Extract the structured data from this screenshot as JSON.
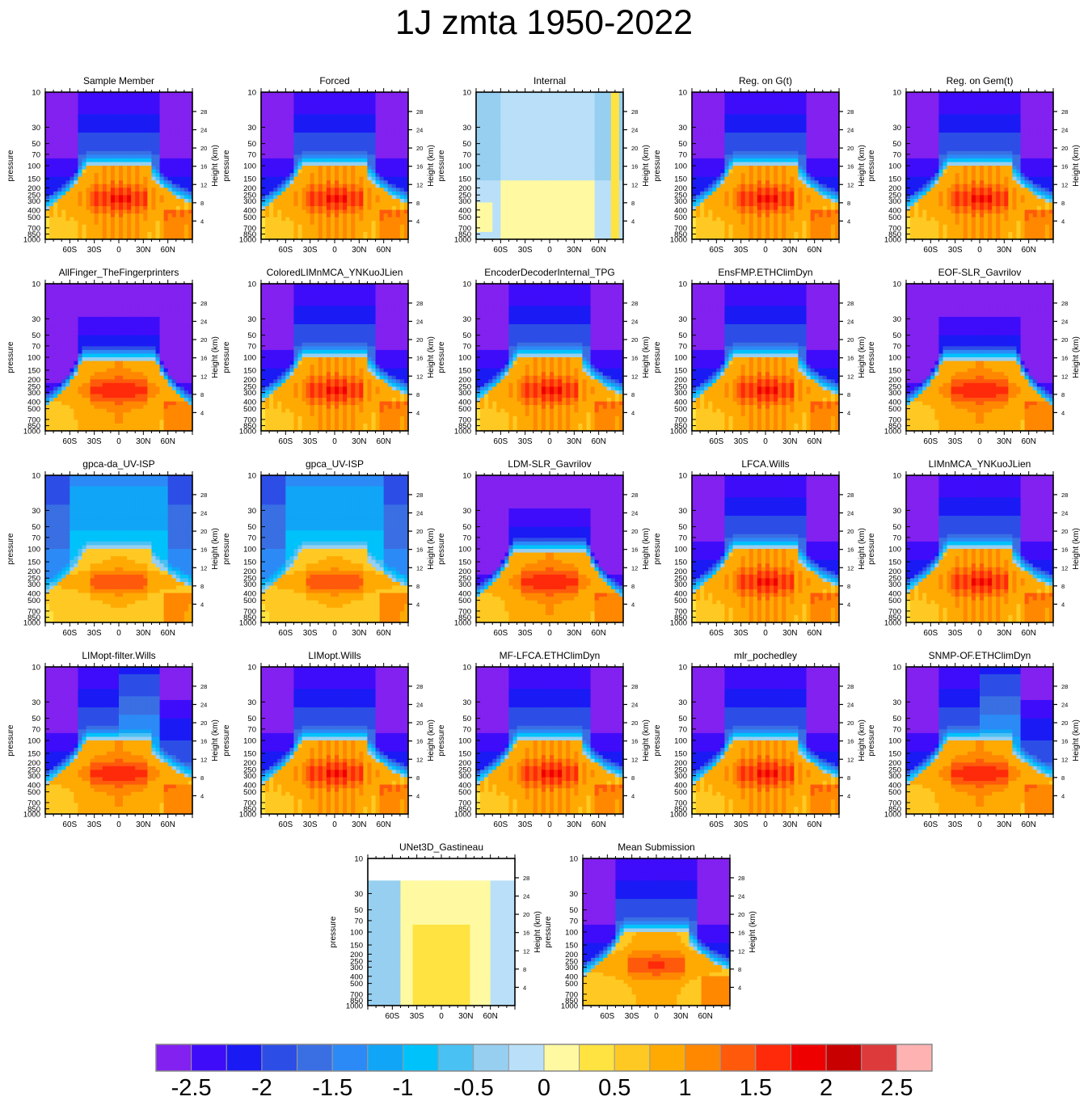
{
  "title": "1J zmta 1950-2022",
  "axis_labels": {
    "y_left": "pressure",
    "y_right": "Height (km)",
    "pressure_ticks": [
      "10",
      "30",
      "50",
      "70",
      "100",
      "150",
      "200",
      "250",
      "300",
      "400",
      "500",
      "700",
      "850",
      "1000"
    ],
    "height_ticks": [
      "28",
      "24",
      "20",
      "16",
      "12",
      "8",
      "4"
    ],
    "lat_ticks": [
      "60S",
      "30S",
      "0",
      "30N",
      "60N"
    ]
  },
  "colorbar": {
    "colors": [
      "#8221f0",
      "#3f0cfa",
      "#1a1af5",
      "#2c4ee6",
      "#396fe3",
      "#2c8af7",
      "#11a5f7",
      "#00c2fb",
      "#4ac1f3",
      "#97cff0",
      "#b9e0f8",
      "#fff9a2",
      "#ffe341",
      "#ffc923",
      "#ffaa03",
      "#ff8800",
      "#ff5a0c",
      "#ff2a0a",
      "#ee0000",
      "#c90000",
      "#dd3b3b",
      "#ffb2b2"
    ],
    "labels": [
      "-2.5",
      "-2",
      "-1.5",
      "-1",
      "-0.5",
      "0",
      "0.5",
      "1",
      "1.5",
      "2",
      "2.5"
    ]
  },
  "chart_data": [
    {
      "type": "heatmap",
      "title": "Sample Member",
      "style": "strong"
    },
    {
      "type": "heatmap",
      "title": "Forced",
      "style": "strong"
    },
    {
      "type": "heatmap",
      "title": "Internal",
      "style": "internal"
    },
    {
      "type": "heatmap",
      "title": "Reg. on G(t)",
      "style": "strong"
    },
    {
      "type": "heatmap",
      "title": "Reg. on Gem(t)",
      "style": "strong"
    },
    {
      "type": "heatmap",
      "title": "AllFinger_TheFingerprinters",
      "style": "smooth"
    },
    {
      "type": "heatmap",
      "title": "ColoredLIMnMCA_YNKuoJLien",
      "style": "strong"
    },
    {
      "type": "heatmap",
      "title": "EncoderDecoderInternal_TPG",
      "style": "strong"
    },
    {
      "type": "heatmap",
      "title": "EnsFMP.ETHClimDyn",
      "style": "strong"
    },
    {
      "type": "heatmap",
      "title": "EOF-SLR_Gavrilov",
      "style": "smooth"
    },
    {
      "type": "heatmap",
      "title": "gpca-da_UV-ISP",
      "style": "weak"
    },
    {
      "type": "heatmap",
      "title": "gpca_UV-ISP",
      "style": "weak"
    },
    {
      "type": "heatmap",
      "title": "LDM-SLR_Gavrilov",
      "style": "smooth"
    },
    {
      "type": "heatmap",
      "title": "LFCA.Wills",
      "style": "strong"
    },
    {
      "type": "heatmap",
      "title": "LIMnMCA_YNKuoJLien",
      "style": "strong"
    },
    {
      "type": "heatmap",
      "title": "LIMopt-filter.Wills",
      "style": "medium"
    },
    {
      "type": "heatmap",
      "title": "LIMopt.Wills",
      "style": "strong"
    },
    {
      "type": "heatmap",
      "title": "MF-LFCA.ETHClimDyn",
      "style": "strong"
    },
    {
      "type": "heatmap",
      "title": "mlr_pochedley",
      "style": "strong"
    },
    {
      "type": "heatmap",
      "title": "SNMP-OF.ETHClimDyn",
      "style": "medium"
    },
    {
      "type": "heatmap",
      "title": "UNet3D_Gastineau",
      "style": "unet"
    },
    {
      "type": "heatmap",
      "title": "Mean Submission",
      "style": "mean"
    }
  ]
}
